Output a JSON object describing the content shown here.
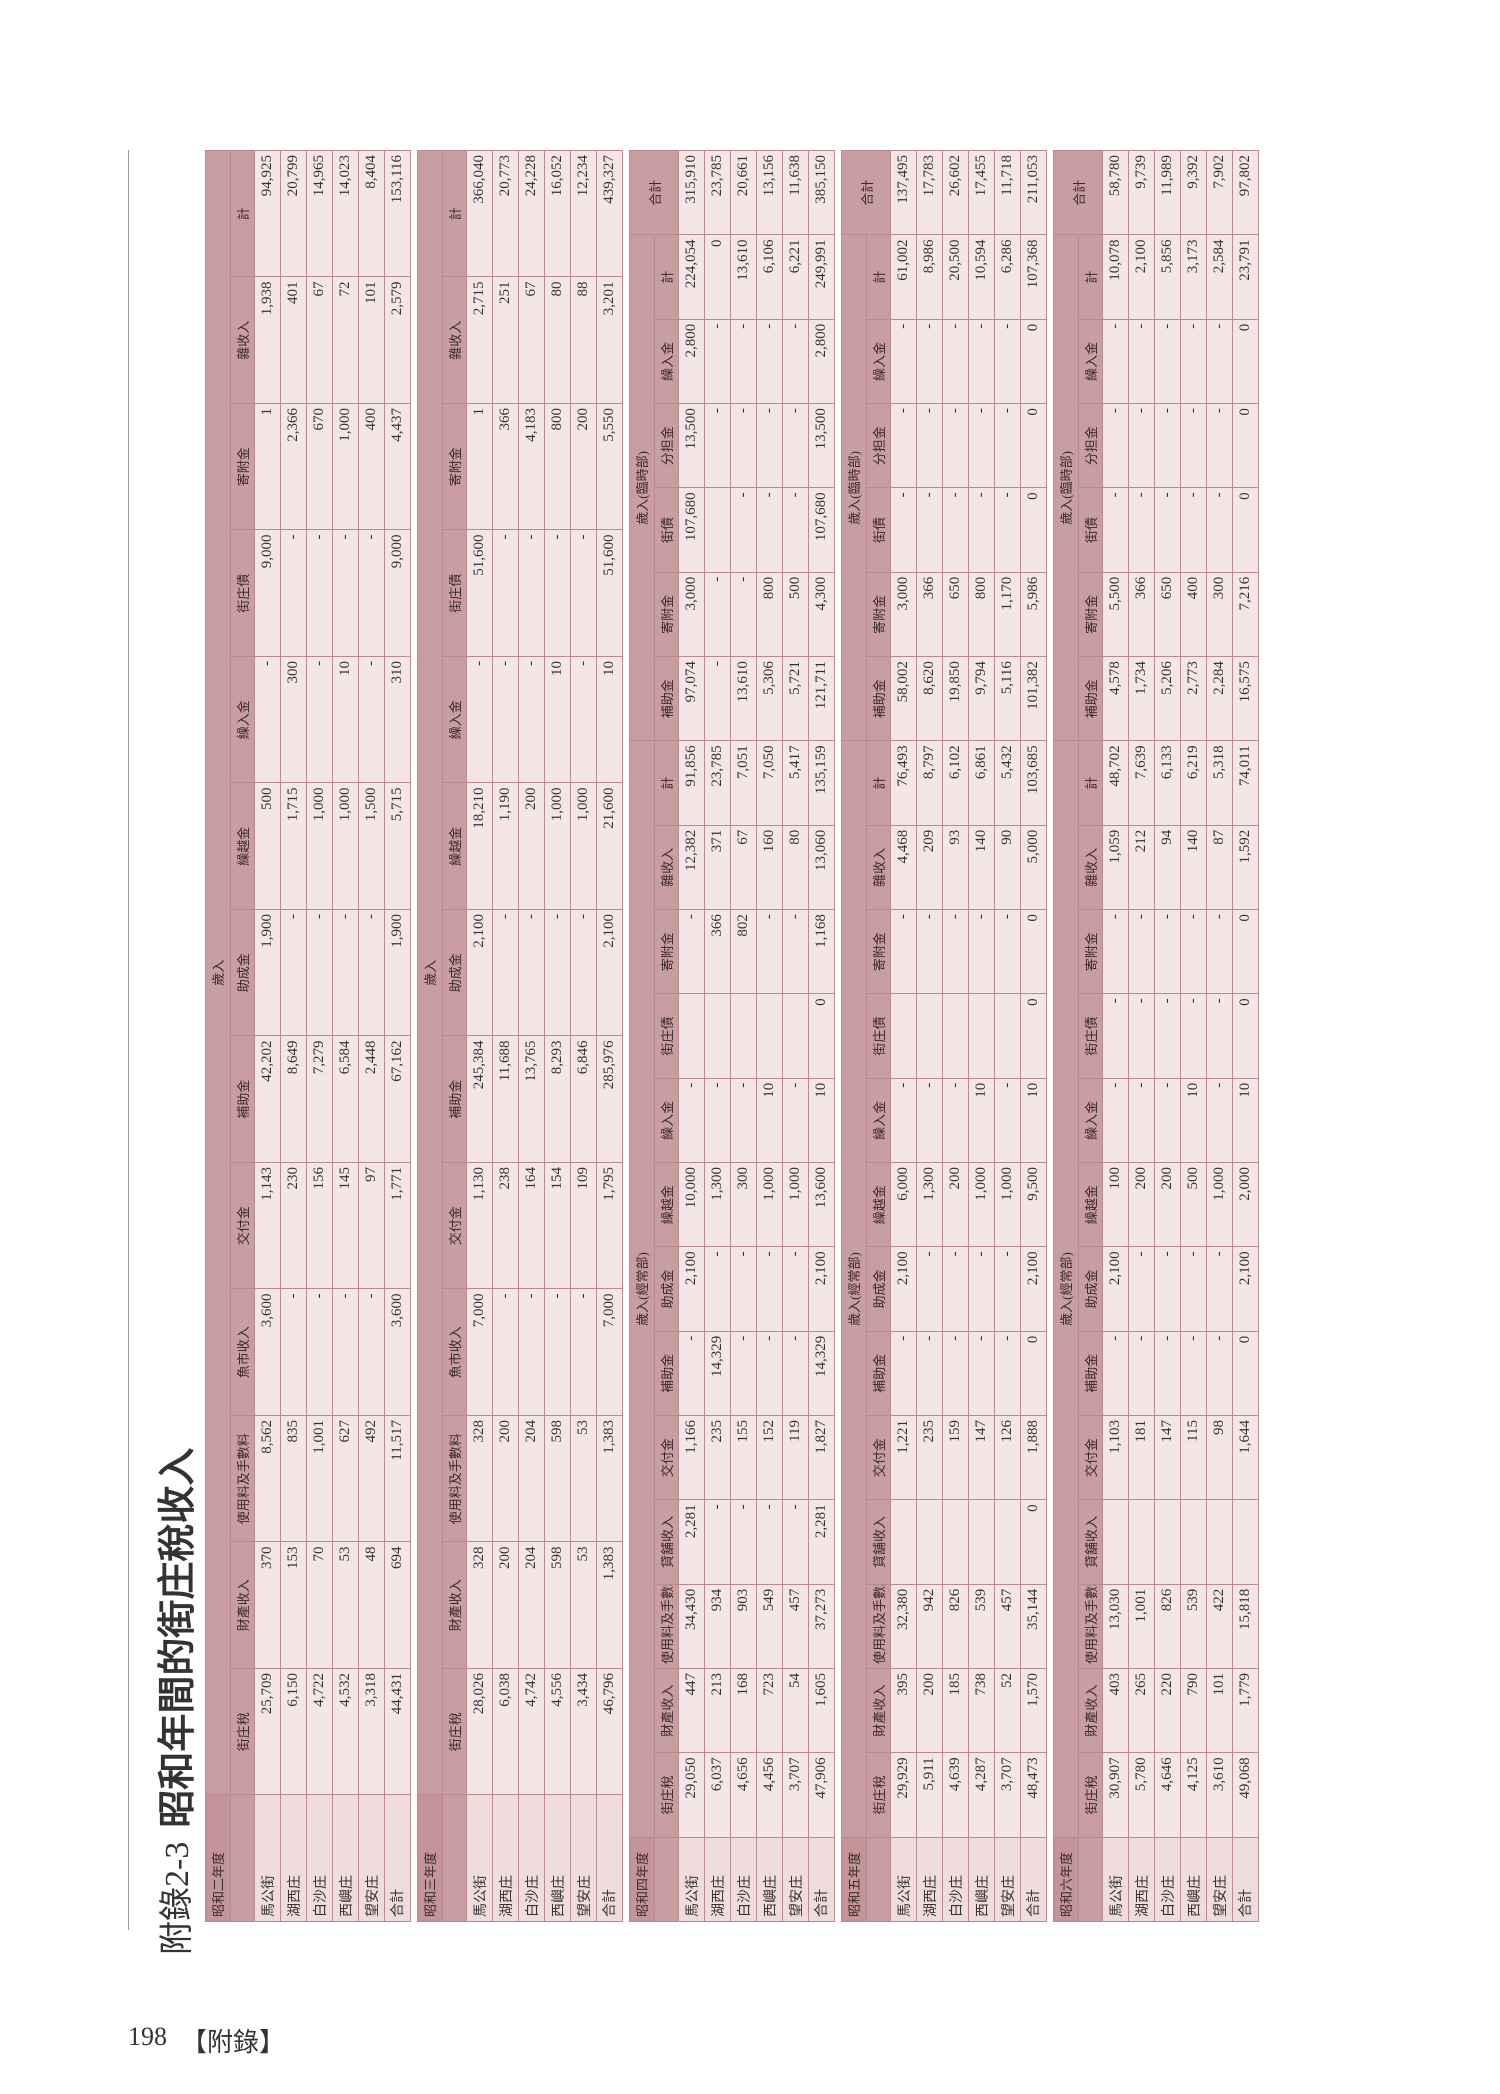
{
  "title": {
    "label": "附錄2-3",
    "text": "昭和年間的街庄稅收入"
  },
  "footer": {
    "page": "198",
    "section": "【附錄】"
  },
  "sections": [
    {
      "year": "昭和二年度",
      "groups": [
        {
          "label": "歲入",
          "columns": [
            "街庄稅",
            "財產收入",
            "使用料及手數料",
            "魚市收入",
            "交付金",
            "補助金",
            "助成金",
            "繰越金",
            "繰入金",
            "街庄債",
            "寄附金",
            "雜收入",
            "計"
          ]
        }
      ],
      "rows": [
        {
          "name": "馬公街",
          "cells": [
            "25,709",
            "370",
            "8,562",
            "3,600",
            "1,143",
            "42,202",
            "1,900",
            "500",
            "-",
            "9,000",
            "1",
            "1,938",
            "94,925"
          ]
        },
        {
          "name": "湖西庄",
          "cells": [
            "6,150",
            "153",
            "835",
            "-",
            "230",
            "8,649",
            "-",
            "1,715",
            "300",
            "-",
            "2,366",
            "401",
            "20,799"
          ]
        },
        {
          "name": "白沙庄",
          "cells": [
            "4,722",
            "70",
            "1,001",
            "-",
            "156",
            "7,279",
            "-",
            "1,000",
            "-",
            "-",
            "670",
            "67",
            "14,965"
          ]
        },
        {
          "name": "西嶼庄",
          "cells": [
            "4,532",
            "53",
            "627",
            "-",
            "145",
            "6,584",
            "-",
            "1,000",
            "10",
            "-",
            "1,000",
            "72",
            "14,023"
          ]
        },
        {
          "name": "望安庄",
          "cells": [
            "3,318",
            "48",
            "492",
            "-",
            "97",
            "2,448",
            "-",
            "1,500",
            "-",
            "-",
            "400",
            "101",
            "8,404"
          ]
        },
        {
          "name": "合計",
          "cells": [
            "44,431",
            "694",
            "11,517",
            "3,600",
            "1,771",
            "67,162",
            "1,900",
            "5,715",
            "310",
            "9,000",
            "4,437",
            "2,579",
            "153,116"
          ]
        }
      ]
    },
    {
      "year": "昭和三年度",
      "groups": [
        {
          "label": "歲入",
          "columns": [
            "街庄稅",
            "財產收入",
            "使用料及手數料",
            "魚市收入",
            "交付金",
            "補助金",
            "助成金",
            "繰越金",
            "繰入金",
            "街庄債",
            "寄附金",
            "雜收入",
            "計"
          ]
        }
      ],
      "rows": [
        {
          "name": "馬公街",
          "cells": [
            "28,026",
            "328",
            "328",
            "7,000",
            "1,130",
            "245,384",
            "2,100",
            "18,210",
            "-",
            "51,600",
            "1",
            "2,715",
            "366,040"
          ]
        },
        {
          "name": "湖西庄",
          "cells": [
            "6,038",
            "200",
            "200",
            "-",
            "238",
            "11,688",
            "-",
            "1,190",
            "-",
            "-",
            "366",
            "251",
            "20,773"
          ]
        },
        {
          "name": "白沙庄",
          "cells": [
            "4,742",
            "204",
            "204",
            "-",
            "164",
            "13,765",
            "-",
            "200",
            "-",
            "-",
            "4,183",
            "67",
            "24,228"
          ]
        },
        {
          "name": "西嶼庄",
          "cells": [
            "4,556",
            "598",
            "598",
            "-",
            "154",
            "8,293",
            "-",
            "1,000",
            "10",
            "-",
            "800",
            "80",
            "16,052"
          ]
        },
        {
          "name": "望安庄",
          "cells": [
            "3,434",
            "53",
            "53",
            "-",
            "109",
            "6,846",
            "-",
            "1,000",
            "-",
            "-",
            "200",
            "88",
            "12,234"
          ]
        },
        {
          "name": "合計",
          "cells": [
            "46,796",
            "1,383",
            "1,383",
            "7,000",
            "1,795",
            "285,976",
            "2,100",
            "21,600",
            "10",
            "51,600",
            "5,550",
            "3,201",
            "439,327"
          ]
        }
      ]
    },
    {
      "year": "昭和四年度",
      "groups": [
        {
          "label": "歲入(經常部)",
          "columns": [
            "街庄稅",
            "財產收入",
            "使用料及手數料",
            "貸舖收入",
            "交付金",
            "補助金",
            "助成金",
            "繰越金",
            "繰入金",
            "街庄債",
            "寄附金",
            "雜收入",
            "計"
          ]
        },
        {
          "label": "歲入(臨時部)",
          "columns": [
            "補助金",
            "寄附金",
            "街債",
            "分担金",
            "繰入金",
            "計"
          ]
        },
        {
          "label": "合計",
          "columns": []
        }
      ],
      "rows": [
        {
          "name": "馬公街",
          "cells": [
            "29,050",
            "447",
            "34,430",
            "2,281",
            "1,166",
            "-",
            "2,100",
            "10,000",
            "-",
            null,
            "-",
            "12,382",
            "91,856",
            "97,074",
            "3,000",
            "107,680",
            "13,500",
            "2,800",
            "224,054",
            "315,910"
          ]
        },
        {
          "name": "湖西庄",
          "cells": [
            "6,037",
            "213",
            "934",
            "-",
            "235",
            "14,329",
            "-",
            "1,300",
            "-",
            null,
            "366",
            "371",
            "23,785",
            "-",
            "-",
            null,
            "-",
            "-",
            "0",
            "23,785"
          ]
        },
        {
          "name": "白沙庄",
          "cells": [
            "4,656",
            "168",
            "903",
            "-",
            "155",
            "-",
            "-",
            "300",
            "-",
            null,
            "802",
            "67",
            "7,051",
            "13,610",
            "-",
            "-",
            "-",
            "-",
            "13,610",
            "20,661"
          ]
        },
        {
          "name": "西嶼庄",
          "cells": [
            "4,456",
            "723",
            "549",
            "-",
            "152",
            "-",
            "-",
            "1,000",
            "10",
            null,
            "-",
            "160",
            "7,050",
            "5,306",
            "800",
            "-",
            "-",
            "-",
            "6,106",
            "13,156"
          ]
        },
        {
          "name": "望安庄",
          "cells": [
            "3,707",
            "54",
            "457",
            "-",
            "119",
            "-",
            "-",
            "1,000",
            "-",
            null,
            "-",
            "80",
            "5,417",
            "5,721",
            "500",
            "-",
            "-",
            "-",
            "6,221",
            "11,638"
          ]
        },
        {
          "name": "合計",
          "cells": [
            "47,906",
            "1,605",
            "37,273",
            "2,281",
            "1,827",
            "14,329",
            "2,100",
            "13,600",
            "10",
            "0",
            "1,168",
            "13,060",
            "135,159",
            "121,711",
            "4,300",
            "107,680",
            "13,500",
            "2,800",
            "249,991",
            "385,150"
          ]
        }
      ]
    },
    {
      "year": "昭和五年度",
      "groups": [
        {
          "label": "歲入(經常部)",
          "columns": [
            "街庄稅",
            "財產收入",
            "使用料及手數料",
            "貸舖收入",
            "交付金",
            "補助金",
            "助成金",
            "繰越金",
            "繰入金",
            "街庄債",
            "寄附金",
            "雜收入",
            "計"
          ]
        },
        {
          "label": "歲入(臨時部)",
          "columns": [
            "補助金",
            "寄附金",
            "街債",
            "分担金",
            "繰入金",
            "計"
          ]
        },
        {
          "label": "合計",
          "columns": []
        }
      ],
      "rows": [
        {
          "name": "馬公街",
          "cells": [
            "29,929",
            "395",
            "32,380",
            null,
            "1,221",
            "-",
            "2,100",
            "6,000",
            "-",
            null,
            "-",
            "4,468",
            "76,493",
            "58,002",
            "3,000",
            "-",
            "-",
            "-",
            "61,002",
            "137,495"
          ]
        },
        {
          "name": "湖西庄",
          "cells": [
            "5,911",
            "200",
            "942",
            null,
            "235",
            "-",
            "-",
            "1,300",
            "-",
            null,
            "-",
            "209",
            "8,797",
            "8,620",
            "366",
            "-",
            "-",
            "-",
            "8,986",
            "17,783"
          ]
        },
        {
          "name": "白沙庄",
          "cells": [
            "4,639",
            "185",
            "826",
            null,
            "159",
            "-",
            "-",
            "200",
            "-",
            null,
            "-",
            "93",
            "6,102",
            "19,850",
            "650",
            "-",
            "-",
            "-",
            "20,500",
            "26,602"
          ]
        },
        {
          "name": "西嶼庄",
          "cells": [
            "4,287",
            "738",
            "539",
            null,
            "147",
            "-",
            "-",
            "1,000",
            "10",
            null,
            "-",
            "140",
            "6,861",
            "9,794",
            "800",
            "-",
            "-",
            "-",
            "10,594",
            "17,455"
          ]
        },
        {
          "name": "望安庄",
          "cells": [
            "3,707",
            "52",
            "457",
            null,
            "126",
            "-",
            "-",
            "1,000",
            "-",
            null,
            "-",
            "90",
            "5,432",
            "5,116",
            "1,170",
            "-",
            "-",
            "-",
            "6,286",
            "11,718"
          ]
        },
        {
          "name": "合計",
          "cells": [
            "48,473",
            "1,570",
            "35,144",
            "0",
            "1,888",
            "0",
            "2,100",
            "9,500",
            "10",
            "0",
            "0",
            "5,000",
            "103,685",
            "101,382",
            "5,986",
            "0",
            "0",
            "0",
            "107,368",
            "211,053"
          ]
        }
      ]
    },
    {
      "year": "昭和六年度",
      "groups": [
        {
          "label": "歲入(經常部)",
          "columns": [
            "街庄稅",
            "財產收入",
            "使用料及手數料",
            "貸舖收入",
            "交付金",
            "補助金",
            "助成金",
            "繰越金",
            "繰入金",
            "街庄債",
            "寄附金",
            "雜收入",
            "計"
          ]
        },
        {
          "label": "歲入(臨時部)",
          "columns": [
            "補助金",
            "寄附金",
            "街債",
            "分担金",
            "繰入金",
            "計"
          ]
        },
        {
          "label": "合計",
          "columns": []
        }
      ],
      "rows": [
        {
          "name": "馬公街",
          "cells": [
            "30,907",
            "403",
            "13,030",
            null,
            "1,103",
            "-",
            "2,100",
            "100",
            "-",
            "-",
            "-",
            "1,059",
            "48,702",
            "4,578",
            "5,500",
            "-",
            "-",
            "-",
            "10,078",
            "58,780"
          ]
        },
        {
          "name": "湖西庄",
          "cells": [
            "5,780",
            "265",
            "1,001",
            null,
            "181",
            "-",
            "-",
            "200",
            "-",
            "-",
            "-",
            "212",
            "7,639",
            "1,734",
            "366",
            "-",
            "-",
            "-",
            "2,100",
            "9,739"
          ]
        },
        {
          "name": "白沙庄",
          "cells": [
            "4,646",
            "220",
            "826",
            null,
            "147",
            "-",
            "-",
            "200",
            "-",
            "-",
            "-",
            "94",
            "6,133",
            "5,206",
            "650",
            "-",
            "-",
            "-",
            "5,856",
            "11,989"
          ]
        },
        {
          "name": "西嶼庄",
          "cells": [
            "4,125",
            "790",
            "539",
            null,
            "115",
            "-",
            "-",
            "500",
            "10",
            "-",
            "-",
            "140",
            "6,219",
            "2,773",
            "400",
            "-",
            "-",
            "-",
            "3,173",
            "9,392"
          ]
        },
        {
          "name": "望安庄",
          "cells": [
            "3,610",
            "101",
            "422",
            null,
            "98",
            "-",
            "-",
            "1,000",
            "-",
            "-",
            "-",
            "87",
            "5,318",
            "2,284",
            "300",
            "-",
            "-",
            "-",
            "2,584",
            "7,902"
          ]
        },
        {
          "name": "合計",
          "cells": [
            "49,068",
            "1,779",
            "15,818",
            null,
            "1,644",
            "0",
            "2,100",
            "2,000",
            "10",
            "0",
            "0",
            "1,592",
            "74,011",
            "16,575",
            "7,216",
            "0",
            "0",
            "0",
            "23,791",
            "97,802"
          ]
        }
      ]
    }
  ]
}
